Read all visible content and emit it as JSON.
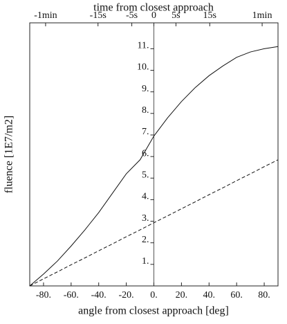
{
  "chart_data": {
    "type": "line",
    "title": "time from closest approach",
    "xlabel": "angle from closest approach [deg]",
    "ylabel": "fluence  [1E7/m2]",
    "xlim": [
      -90,
      90
    ],
    "ylim": [
      0,
      12.2
    ],
    "xticks": [
      {
        "value": -80,
        "label": "-80."
      },
      {
        "value": -60,
        "label": "-60."
      },
      {
        "value": -40,
        "label": "-40."
      },
      {
        "value": -20,
        "label": "-20."
      },
      {
        "value": 0,
        "label": "0."
      },
      {
        "value": 20,
        "label": "20."
      },
      {
        "value": 40,
        "label": "40."
      },
      {
        "value": 60,
        "label": "60."
      },
      {
        "value": 80,
        "label": "80."
      }
    ],
    "x2ticks": [
      {
        "value": -78.5,
        "label": "-1min"
      },
      {
        "value": -40.5,
        "label": "-15s"
      },
      {
        "value": -16,
        "label": "-5s"
      },
      {
        "value": 0,
        "label": "0"
      },
      {
        "value": 16,
        "label": "5s"
      },
      {
        "value": 40.5,
        "label": "15s"
      },
      {
        "value": 78.5,
        "label": "1min"
      }
    ],
    "yticks": [
      {
        "value": 1,
        "label": "1."
      },
      {
        "value": 2,
        "label": "2."
      },
      {
        "value": 3,
        "label": "3."
      },
      {
        "value": 4,
        "label": "4."
      },
      {
        "value": 5,
        "label": "5."
      },
      {
        "value": 6,
        "label": "6."
      },
      {
        "value": 7,
        "label": "7."
      },
      {
        "value": 8,
        "label": "8."
      },
      {
        "value": 9,
        "label": "9."
      },
      {
        "value": 10,
        "label": "10."
      },
      {
        "value": 11,
        "label": "11."
      }
    ],
    "x": [
      -90,
      -80,
      -70,
      -60,
      -50,
      -40,
      -30,
      -20,
      -10,
      0,
      10,
      20,
      30,
      40,
      50,
      60,
      70,
      80,
      90
    ],
    "series": [
      {
        "color": "#111111",
        "style": "solid",
        "values": [
          0,
          0.55,
          1.15,
          1.85,
          2.6,
          3.4,
          4.3,
          5.2,
          5.85,
          6.95,
          7.8,
          8.55,
          9.2,
          9.75,
          10.2,
          10.6,
          10.85,
          11.0,
          11.1
        ]
      },
      {
        "color": "#111111",
        "style": "dashed",
        "values": [
          0,
          0.33,
          0.65,
          0.98,
          1.3,
          1.63,
          1.95,
          2.28,
          2.6,
          2.93,
          3.25,
          3.58,
          3.9,
          4.23,
          4.55,
          4.88,
          5.2,
          5.53,
          5.85
        ]
      }
    ]
  }
}
